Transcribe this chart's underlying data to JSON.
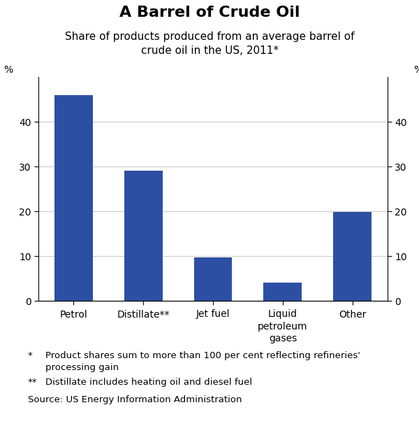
{
  "title": "A Barrel of Crude Oil",
  "subtitle": "Share of products produced from an average barrel of\ncrude oil in the US, 2011*",
  "categories": [
    "Petrol",
    "Distillate**",
    "Jet fuel",
    "Liquid\npetroleum\ngases",
    "Other"
  ],
  "values": [
    46,
    29,
    9.7,
    4,
    19.8
  ],
  "bar_color": "#2c4fa3",
  "ylim": [
    0,
    50
  ],
  "yticks": [
    0,
    10,
    20,
    30,
    40
  ],
  "ylabel_left": "%",
  "ylabel_right": "%",
  "footnote1_star": "*",
  "footnote1_text": "Product shares sum to more than 100 per cent reflecting refineries'\nprocessing gain",
  "footnote2_star": "**",
  "footnote2_text": "Distillate includes heating oil and diesel fuel",
  "source": "Source: US Energy Information Administration",
  "background_color": "#ffffff",
  "grid_color": "#cccccc",
  "title_fontsize": 16,
  "subtitle_fontsize": 11,
  "tick_fontsize": 10,
  "footnote_fontsize": 9.5
}
